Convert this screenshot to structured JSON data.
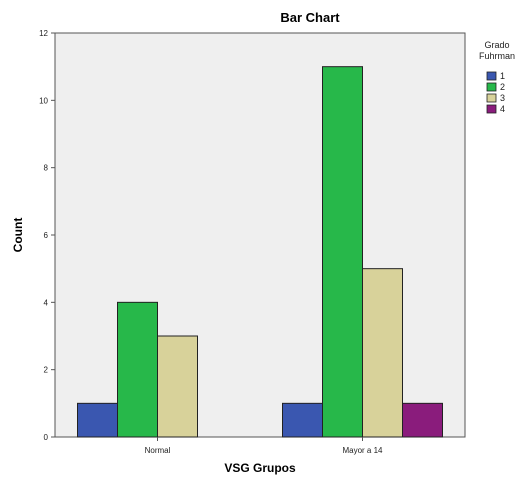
{
  "chart_data": {
    "type": "bar",
    "title": "Bar Chart",
    "xlabel": "VSG Grupos",
    "ylabel": "Count",
    "categories": [
      "Normal",
      "Mayor a 14"
    ],
    "series": [
      {
        "name": "1",
        "values": [
          1,
          1
        ],
        "color": "#3a57b0"
      },
      {
        "name": "2",
        "values": [
          4,
          11
        ],
        "color": "#27b84a"
      },
      {
        "name": "3",
        "values": [
          3,
          5
        ],
        "color": "#d8d29a"
      },
      {
        "name": "4",
        "values": [
          0,
          1
        ],
        "color": "#8a1c7c"
      }
    ],
    "ylim": [
      0,
      12
    ],
    "yticks": [
      0,
      2,
      4,
      6,
      8,
      10,
      12
    ],
    "legend": {
      "title_lines": [
        "Grado",
        "Fuhrman"
      ],
      "placement": "right"
    },
    "grid": false,
    "plot_background": "#efefef"
  }
}
